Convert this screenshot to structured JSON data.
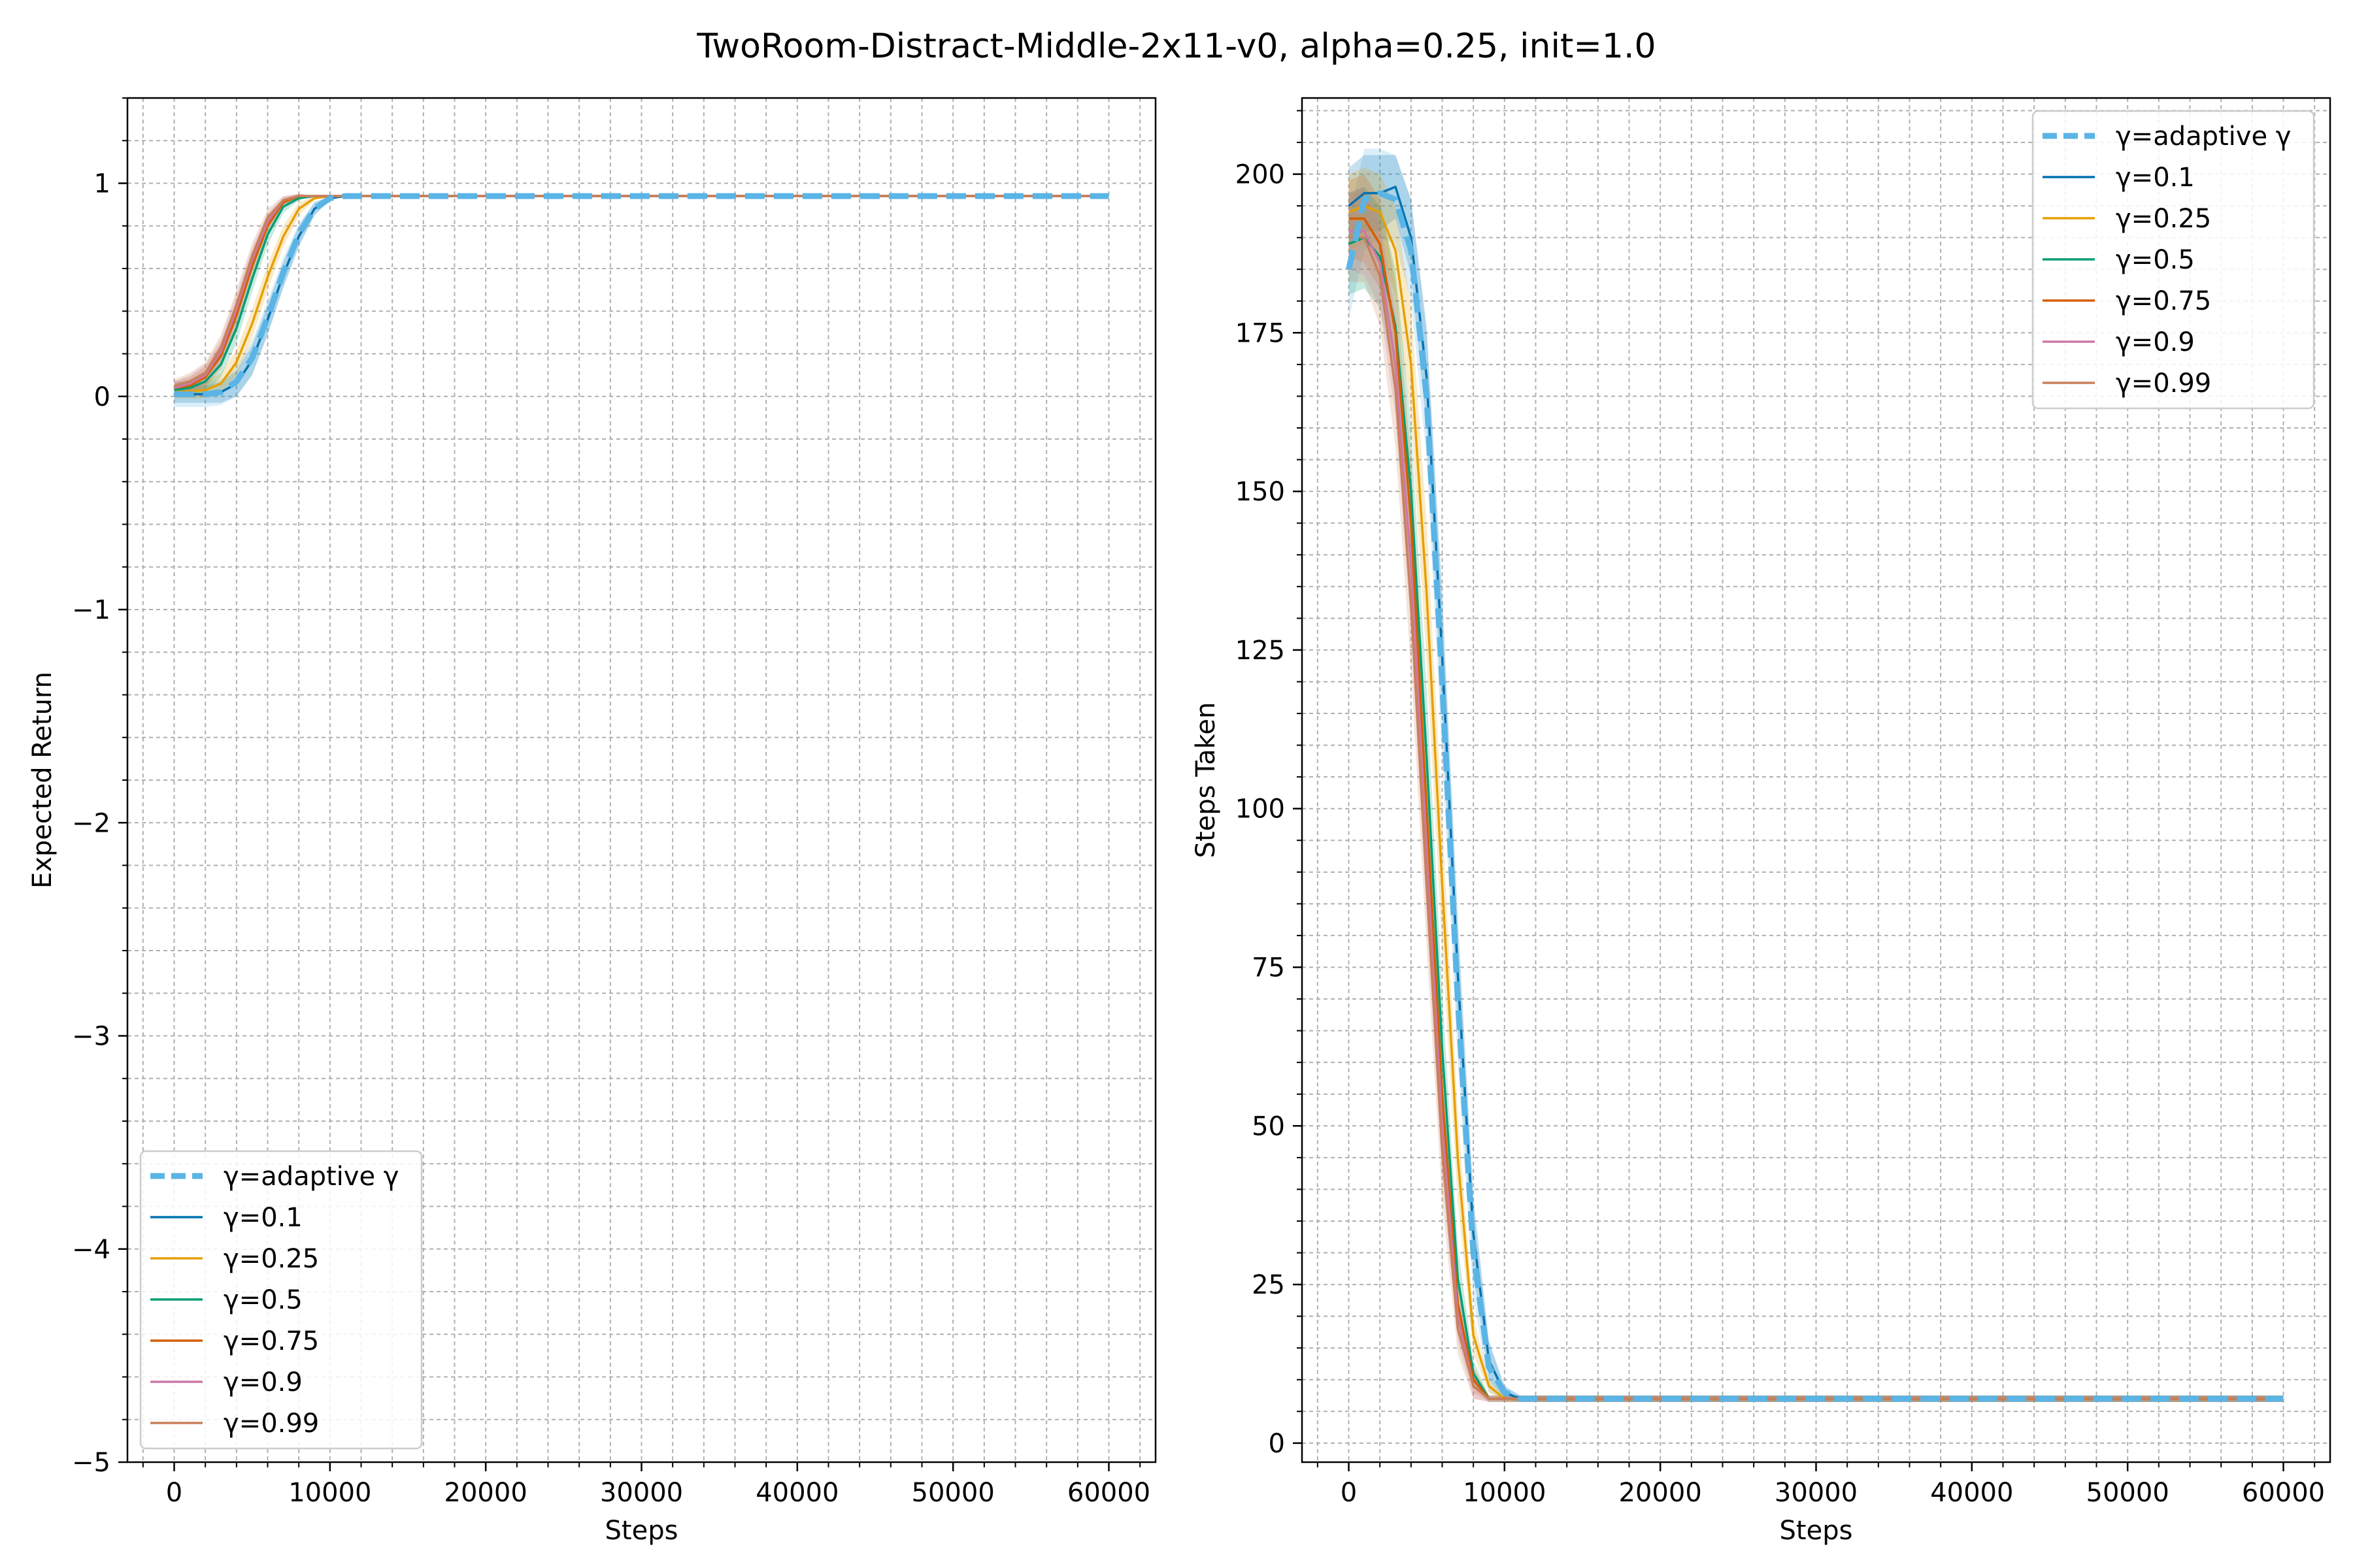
{
  "figure": {
    "title": "TwoRoom-Distract-Middle-2x11-v0, alpha=0.25, init=1.0"
  },
  "colors": {
    "adaptive": "#5ab4e5",
    "g0_1": "#0072b2",
    "g0_25": "#e69f00",
    "g0_5": "#009e73",
    "g0_75": "#d55e00",
    "g0_9": "#cc79a7",
    "g0_99": "#c8805a",
    "grid": "#b0b0b0"
  },
  "chart_data": [
    {
      "type": "line",
      "xlabel": "Steps",
      "ylabel": "Expected Return",
      "xlim": [
        -3000,
        63000
      ],
      "ylim": [
        -5,
        1.4
      ],
      "xticks": [
        0,
        10000,
        20000,
        30000,
        40000,
        50000,
        60000
      ],
      "yticks": [
        -5,
        -4,
        -3,
        -2,
        -1,
        0,
        1
      ],
      "ytick_labels": [
        "−5",
        "−4",
        "−3",
        "−2",
        "−1",
        "0",
        "1"
      ],
      "grid": true,
      "legend_position": "lower-left",
      "series": [
        {
          "name": "γ=adaptive γ",
          "color_key": "adaptive",
          "dashed": true,
          "x": [
            0,
            2000,
            3000,
            4000,
            5000,
            6000,
            7000,
            8000,
            9000,
            10000,
            11000,
            60000
          ],
          "y": [
            0.01,
            0.01,
            0.02,
            0.07,
            0.18,
            0.37,
            0.58,
            0.76,
            0.88,
            0.93,
            0.94,
            0.94
          ],
          "band": [
            0.06,
            0.06,
            0.06,
            0.07,
            0.08,
            0.08,
            0.07,
            0.05,
            0.03,
            0.01,
            0,
            0
          ]
        },
        {
          "name": "γ=0.1",
          "color_key": "g0_1",
          "x": [
            0,
            2000,
            3000,
            4000,
            5000,
            6000,
            7000,
            8000,
            9000,
            10000,
            11000,
            60000
          ],
          "y": [
            0.01,
            0.01,
            0.02,
            0.06,
            0.17,
            0.36,
            0.57,
            0.75,
            0.88,
            0.93,
            0.94,
            0.94
          ],
          "band": [
            0.04,
            0.04,
            0.05,
            0.06,
            0.07,
            0.07,
            0.06,
            0.05,
            0.03,
            0.01,
            0,
            0
          ]
        },
        {
          "name": "γ=0.25",
          "color_key": "g0_25",
          "x": [
            0,
            2000,
            3000,
            4000,
            5000,
            6000,
            7000,
            8000,
            9000,
            10000,
            60000
          ],
          "y": [
            0.02,
            0.03,
            0.06,
            0.16,
            0.34,
            0.56,
            0.75,
            0.88,
            0.93,
            0.94,
            0.94
          ],
          "band": [
            0.03,
            0.04,
            0.05,
            0.06,
            0.07,
            0.06,
            0.05,
            0.03,
            0.01,
            0,
            0
          ]
        },
        {
          "name": "γ=0.5",
          "color_key": "g0_5",
          "x": [
            0,
            1000,
            2000,
            3000,
            4000,
            5000,
            6000,
            7000,
            8000,
            9000,
            60000
          ],
          "y": [
            0.03,
            0.04,
            0.07,
            0.15,
            0.32,
            0.55,
            0.76,
            0.89,
            0.93,
            0.94,
            0.94
          ],
          "band": [
            0.03,
            0.04,
            0.05,
            0.06,
            0.07,
            0.06,
            0.05,
            0.03,
            0.01,
            0,
            0
          ]
        },
        {
          "name": "γ=0.75",
          "color_key": "g0_75",
          "x": [
            0,
            1000,
            2000,
            3000,
            4000,
            5000,
            6000,
            7000,
            8000,
            9000,
            60000
          ],
          "y": [
            0.04,
            0.05,
            0.09,
            0.19,
            0.38,
            0.61,
            0.8,
            0.91,
            0.94,
            0.94,
            0.94
          ],
          "band": [
            0.03,
            0.04,
            0.05,
            0.06,
            0.07,
            0.06,
            0.04,
            0.02,
            0.01,
            0,
            0
          ]
        },
        {
          "name": "γ=0.9",
          "color_key": "g0_9",
          "x": [
            0,
            1000,
            2000,
            3000,
            4000,
            5000,
            6000,
            7000,
            8000,
            9000,
            60000
          ],
          "y": [
            0.04,
            0.06,
            0.1,
            0.21,
            0.41,
            0.64,
            0.82,
            0.92,
            0.94,
            0.94,
            0.94
          ],
          "band": [
            0.03,
            0.04,
            0.05,
            0.06,
            0.07,
            0.06,
            0.04,
            0.02,
            0.01,
            0,
            0
          ]
        },
        {
          "name": "γ=0.99",
          "color_key": "g0_99",
          "x": [
            0,
            1000,
            2000,
            3000,
            4000,
            5000,
            6000,
            7000,
            8000,
            9000,
            60000
          ],
          "y": [
            0.05,
            0.07,
            0.11,
            0.23,
            0.43,
            0.66,
            0.84,
            0.92,
            0.94,
            0.94,
            0.94
          ],
          "band": [
            0.03,
            0.04,
            0.05,
            0.06,
            0.07,
            0.06,
            0.04,
            0.02,
            0.01,
            0,
            0
          ]
        }
      ]
    },
    {
      "type": "line",
      "xlabel": "Steps",
      "ylabel": "Steps Taken",
      "xlim": [
        -3000,
        63000
      ],
      "ylim": [
        -3,
        212
      ],
      "xticks": [
        0,
        10000,
        20000,
        30000,
        40000,
        50000,
        60000
      ],
      "yticks": [
        0,
        25,
        50,
        75,
        100,
        125,
        150,
        175,
        200
      ],
      "ytick_labels": [
        "0",
        "25",
        "50",
        "75",
        "100",
        "125",
        "150",
        "175",
        "200"
      ],
      "grid": true,
      "legend_position": "upper-right",
      "series": [
        {
          "name": "γ=adaptive γ",
          "color_key": "adaptive",
          "dashed": true,
          "x": [
            0,
            1000,
            2000,
            3000,
            4000,
            5000,
            6000,
            7000,
            8000,
            9000,
            10000,
            11000,
            60000
          ],
          "y": [
            185,
            196,
            197,
            196,
            188,
            165,
            120,
            70,
            30,
            12,
            8,
            7,
            7
          ],
          "band": [
            8,
            8,
            7,
            7,
            8,
            10,
            12,
            10,
            7,
            4,
            1,
            0.5,
            0.5
          ]
        },
        {
          "name": "γ=0.1",
          "color_key": "g0_1",
          "x": [
            0,
            1000,
            2000,
            3000,
            4000,
            5000,
            6000,
            7000,
            8000,
            9000,
            10000,
            11000,
            60000
          ],
          "y": [
            195,
            197,
            197,
            198,
            190,
            168,
            124,
            74,
            33,
            13,
            8,
            7,
            7
          ],
          "band": [
            6,
            6,
            6,
            5,
            6,
            8,
            10,
            9,
            6,
            3,
            1,
            0.5,
            0.5
          ]
        },
        {
          "name": "γ=0.25",
          "color_key": "g0_25",
          "x": [
            0,
            1000,
            2000,
            3000,
            4000,
            5000,
            6000,
            7000,
            8000,
            9000,
            10000,
            60000
          ],
          "y": [
            194,
            195,
            194,
            188,
            170,
            134,
            88,
            45,
            17,
            9,
            7,
            7
          ],
          "band": [
            6,
            6,
            6,
            7,
            9,
            11,
            10,
            7,
            3,
            1,
            0.5,
            0.5
          ]
        },
        {
          "name": "γ=0.5",
          "color_key": "g0_5",
          "x": [
            0,
            1000,
            2000,
            3000,
            4000,
            5000,
            6000,
            7000,
            8000,
            9000,
            60000
          ],
          "y": [
            189,
            190,
            187,
            176,
            150,
            108,
            62,
            26,
            11,
            7,
            7
          ],
          "band": [
            8,
            8,
            8,
            9,
            10,
            11,
            9,
            5,
            2,
            0.5,
            0.5
          ]
        },
        {
          "name": "γ=0.75",
          "color_key": "g0_75",
          "x": [
            0,
            1000,
            2000,
            3000,
            4000,
            5000,
            6000,
            7000,
            8000,
            9000,
            60000
          ],
          "y": [
            193,
            193,
            189,
            175,
            145,
            100,
            55,
            22,
            10,
            7,
            7
          ],
          "band": [
            6,
            7,
            7,
            8,
            10,
            11,
            8,
            4,
            2,
            0.5,
            0.5
          ]
        },
        {
          "name": "γ=0.9",
          "color_key": "g0_9",
          "x": [
            0,
            1000,
            2000,
            3000,
            4000,
            5000,
            6000,
            7000,
            8000,
            9000,
            60000
          ],
          "y": [
            191,
            191,
            186,
            170,
            138,
            93,
            50,
            20,
            9,
            7,
            7
          ],
          "band": [
            6,
            7,
            7,
            8,
            10,
            10,
            8,
            4,
            2,
            0.5,
            0.5
          ]
        },
        {
          "name": "γ=0.99",
          "color_key": "g0_99",
          "x": [
            0,
            1000,
            2000,
            3000,
            4000,
            5000,
            6000,
            7000,
            8000,
            9000,
            60000
          ],
          "y": [
            190,
            190,
            184,
            166,
            132,
            88,
            46,
            18,
            9,
            7,
            7
          ],
          "band": [
            7,
            7,
            8,
            9,
            10,
            10,
            8,
            4,
            2,
            0.5,
            0.5
          ]
        }
      ]
    }
  ]
}
